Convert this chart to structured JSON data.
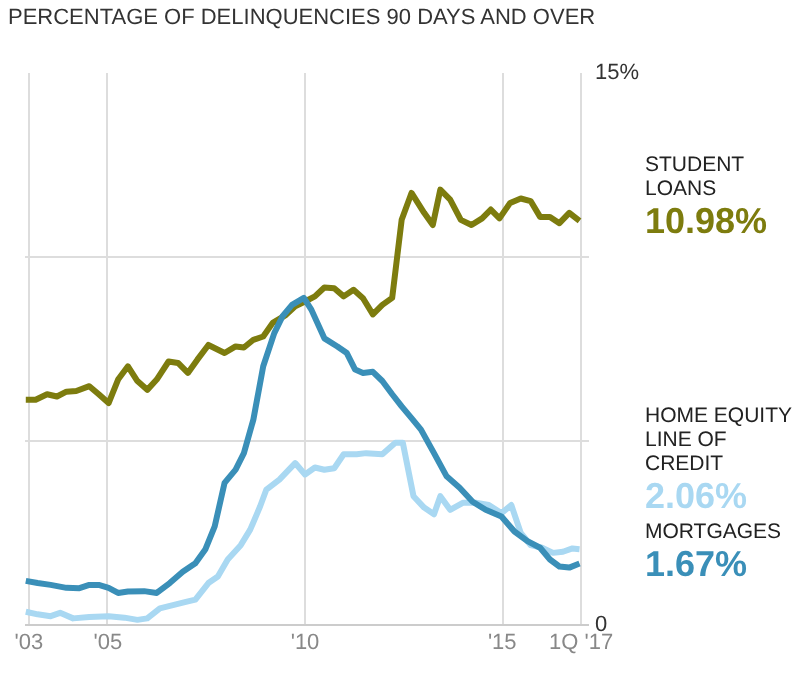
{
  "chart_data": {
    "type": "line",
    "title": "PERCENTAGE OF DELINQUENCIES 90 DAYS AND OVER",
    "xlim": [
      2002.9,
      2017.2
    ],
    "ylim": [
      0,
      15
    ],
    "xticks": [
      {
        "value": 2003,
        "label": "'03"
      },
      {
        "value": 2005,
        "label": "'05"
      },
      {
        "value": 2010,
        "label": "'10"
      },
      {
        "value": 2015,
        "label": "'15"
      },
      {
        "value": 2017,
        "label": "1Q '17"
      }
    ],
    "yticks": [
      0,
      {
        "value": 5,
        "label": null
      },
      {
        "value": 10,
        "label": null
      },
      {
        "value": 15,
        "label": "15%"
      }
    ],
    "grid": true,
    "marker": "none",
    "line_style": "solid",
    "series": [
      {
        "name": "STUDENT LOANS",
        "color": "#7d7c0e",
        "x": [
          2002.92,
          2003.17,
          2003.46,
          2003.71,
          2003.95,
          2004.2,
          2004.53,
          2004.77,
          2005.02,
          2005.26,
          2005.51,
          2005.75,
          2006.0,
          2006.24,
          2006.54,
          2006.78,
          2007.03,
          2007.27,
          2007.55,
          2007.96,
          2008.24,
          2008.45,
          2008.69,
          2008.94,
          2009.18,
          2009.51,
          2009.75,
          2010.0,
          2010.25,
          2010.49,
          2010.74,
          2010.98,
          2011.23,
          2011.47,
          2011.72,
          2011.96,
          2012.21,
          2012.45,
          2012.7,
          2013.02,
          2013.24,
          2013.43,
          2013.68,
          2013.95,
          2014.22,
          2014.49,
          2014.71,
          2014.93,
          2015.2,
          2015.47,
          2015.72,
          2015.96,
          2016.21,
          2016.45,
          2016.7,
          2016.96
        ],
        "values": [
          6.12,
          6.12,
          6.27,
          6.21,
          6.34,
          6.36,
          6.49,
          6.27,
          6.03,
          6.67,
          7.03,
          6.63,
          6.39,
          6.67,
          7.16,
          7.12,
          6.85,
          7.21,
          7.61,
          7.39,
          7.57,
          7.54,
          7.75,
          7.84,
          8.21,
          8.42,
          8.66,
          8.79,
          8.93,
          9.17,
          9.15,
          8.93,
          9.11,
          8.88,
          8.44,
          8.7,
          8.89,
          11.01,
          11.74,
          11.2,
          10.87,
          11.83,
          11.56,
          11.01,
          10.87,
          11.05,
          11.29,
          11.05,
          11.47,
          11.59,
          11.52,
          11.09,
          11.09,
          10.92,
          11.2,
          10.98
        ],
        "value_labels": [
          null,
          null,
          null,
          null,
          null,
          null,
          null,
          null,
          null,
          null,
          null,
          null,
          null,
          null,
          null,
          null,
          null,
          null,
          null,
          null,
          null,
          null,
          null,
          null,
          null,
          null,
          null,
          null,
          null,
          null,
          null,
          null,
          null,
          null,
          null,
          null,
          null,
          null,
          null,
          null,
          null,
          null,
          null,
          null,
          null,
          null,
          null,
          null,
          null,
          null,
          null,
          null,
          null,
          null,
          null,
          "10.98%"
        ]
      },
      {
        "name": "HOME EQUITY LINE OF CREDIT",
        "color": "#a9d8f2",
        "x": [
          2002.92,
          2003.22,
          2003.55,
          2003.79,
          2004.12,
          2004.53,
          2005.02,
          2005.42,
          2005.75,
          2006.0,
          2006.32,
          2006.65,
          2006.98,
          2007.22,
          2007.55,
          2007.79,
          2008.04,
          2008.37,
          2008.61,
          2008.86,
          2009.02,
          2009.35,
          2009.75,
          2010.0,
          2010.25,
          2010.49,
          2010.74,
          2010.98,
          2011.31,
          2011.55,
          2011.96,
          2012.29,
          2012.48,
          2012.75,
          2013.02,
          2013.27,
          2013.43,
          2013.68,
          2014.0,
          2014.33,
          2014.66,
          2014.98,
          2015.23,
          2015.47,
          2015.72,
          2016.01,
          2016.29,
          2016.54,
          2016.78,
          2016.96
        ],
        "values": [
          0.36,
          0.29,
          0.24,
          0.33,
          0.18,
          0.22,
          0.24,
          0.2,
          0.14,
          0.18,
          0.45,
          0.54,
          0.63,
          0.69,
          1.14,
          1.32,
          1.78,
          2.17,
          2.59,
          3.22,
          3.68,
          3.95,
          4.4,
          4.09,
          4.28,
          4.22,
          4.26,
          4.64,
          4.64,
          4.67,
          4.64,
          4.95,
          4.95,
          3.5,
          3.19,
          3.01,
          3.5,
          3.13,
          3.32,
          3.32,
          3.26,
          3.04,
          3.26,
          2.5,
          2.17,
          2.1,
          1.96,
          1.99,
          2.08,
          2.06
        ],
        "value_labels": [
          null,
          null,
          null,
          null,
          null,
          null,
          null,
          null,
          null,
          null,
          null,
          null,
          null,
          null,
          null,
          null,
          null,
          null,
          null,
          null,
          null,
          null,
          null,
          null,
          null,
          null,
          null,
          null,
          null,
          null,
          null,
          null,
          null,
          null,
          null,
          null,
          null,
          null,
          null,
          null,
          null,
          null,
          null,
          null,
          null,
          null,
          null,
          null,
          null,
          "2.06%"
        ]
      },
      {
        "name": "MORTGAGES",
        "color": "#3a8fb8",
        "x": [
          2002.92,
          2003.22,
          2003.55,
          2003.95,
          2004.28,
          2004.53,
          2004.77,
          2005.02,
          2005.26,
          2005.51,
          2005.92,
          2006.24,
          2006.57,
          2006.9,
          2007.22,
          2007.47,
          2007.71,
          2007.96,
          2008.24,
          2008.45,
          2008.69,
          2008.94,
          2009.22,
          2009.43,
          2009.67,
          2009.97,
          2010.16,
          2010.49,
          2010.82,
          2011.06,
          2011.27,
          2011.47,
          2011.72,
          2011.96,
          2012.21,
          2012.45,
          2012.7,
          2012.94,
          2013.27,
          2013.59,
          2013.92,
          2014.25,
          2014.58,
          2014.98,
          2015.31,
          2015.64,
          2015.96,
          2016.21,
          2016.45,
          2016.7,
          2016.96
        ],
        "values": [
          1.2,
          1.14,
          1.09,
          1.01,
          1.0,
          1.09,
          1.09,
          1.01,
          0.87,
          0.91,
          0.92,
          0.87,
          1.14,
          1.45,
          1.68,
          2.05,
          2.68,
          3.86,
          4.22,
          4.67,
          5.58,
          7.03,
          7.93,
          8.39,
          8.7,
          8.89,
          8.57,
          7.79,
          7.57,
          7.39,
          6.94,
          6.85,
          6.88,
          6.63,
          6.27,
          5.94,
          5.62,
          5.31,
          4.67,
          4.04,
          3.73,
          3.35,
          3.13,
          2.95,
          2.54,
          2.28,
          2.1,
          1.78,
          1.59,
          1.56,
          1.67
        ],
        "value_labels": [
          null,
          null,
          null,
          null,
          null,
          null,
          null,
          null,
          null,
          null,
          null,
          null,
          null,
          null,
          null,
          null,
          null,
          null,
          null,
          null,
          null,
          null,
          null,
          null,
          null,
          null,
          null,
          null,
          null,
          null,
          null,
          null,
          null,
          null,
          null,
          null,
          null,
          null,
          null,
          null,
          null,
          null,
          null,
          null,
          null,
          null,
          null,
          null,
          null,
          null,
          "1.67%"
        ]
      }
    ]
  }
}
